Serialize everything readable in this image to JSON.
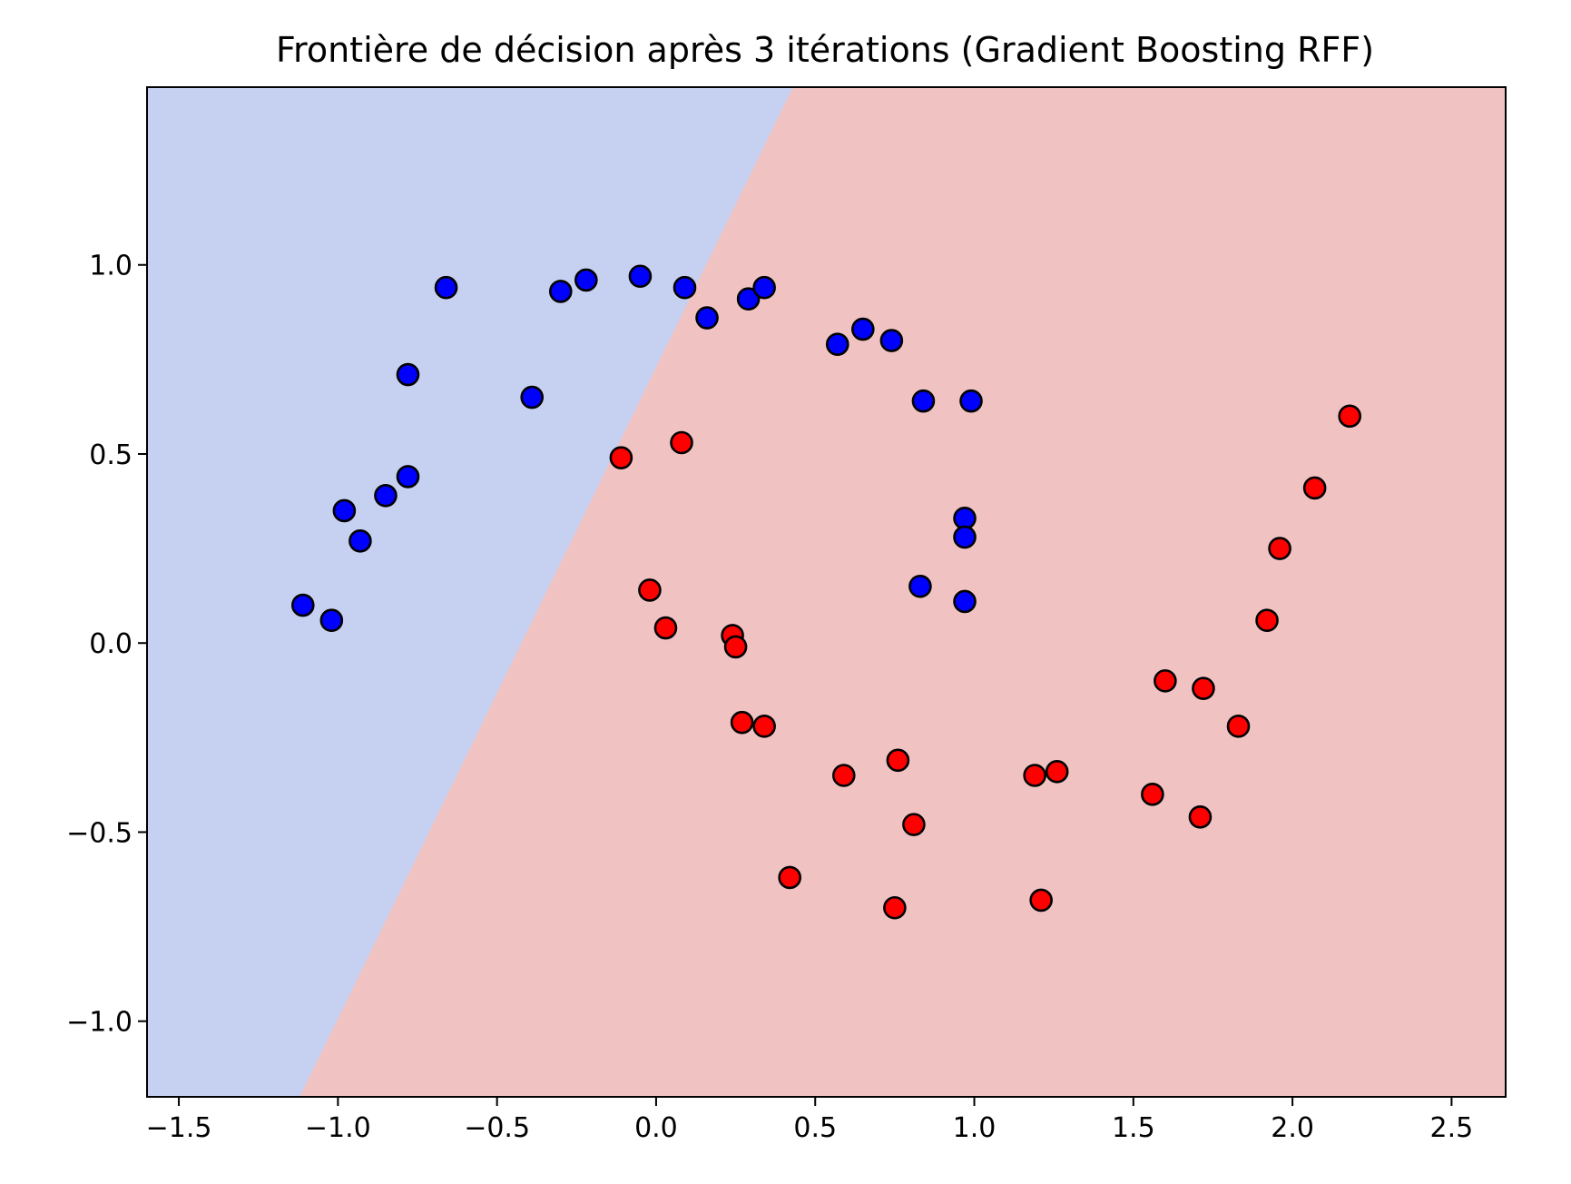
{
  "chart_data": {
    "type": "scatter",
    "title": "Frontière de décision après 3 itérations (Gradient Boosting RFF)",
    "xlabel": "",
    "ylabel": "",
    "xlim": [
      -1.6,
      2.67
    ],
    "ylim": [
      -1.2,
      1.47
    ],
    "xticks": [
      -1.5,
      -1.0,
      -0.5,
      0.0,
      0.5,
      1.0,
      1.5,
      2.0,
      2.5
    ],
    "xtick_labels": [
      "−1.5",
      "−1.0",
      "−0.5",
      "0.0",
      "0.5",
      "1.0",
      "1.5",
      "2.0",
      "2.5"
    ],
    "yticks": [
      -1.0,
      -0.5,
      0.0,
      0.5,
      1.0
    ],
    "ytick_labels": [
      "−1.0",
      "−0.5",
      "0.0",
      "0.5",
      "1.0"
    ],
    "grid": false,
    "decision_boundary": {
      "line": [
        [
          -1.12,
          -1.2
        ],
        [
          0.43,
          1.47
        ]
      ],
      "left_region_color": "#c6d0f1",
      "right_region_color": "#f0c3c2"
    },
    "series": [
      {
        "color": "#0000ff",
        "points": [
          [
            -1.11,
            0.1
          ],
          [
            -1.02,
            0.06
          ],
          [
            -0.98,
            0.35
          ],
          [
            -0.93,
            0.27
          ],
          [
            -0.85,
            0.39
          ],
          [
            -0.78,
            0.44
          ],
          [
            -0.78,
            0.71
          ],
          [
            -0.66,
            0.94
          ],
          [
            -0.39,
            0.65
          ],
          [
            -0.3,
            0.93
          ],
          [
            -0.22,
            0.96
          ],
          [
            -0.05,
            0.97
          ],
          [
            0.09,
            0.94
          ],
          [
            0.16,
            0.86
          ],
          [
            0.29,
            0.91
          ],
          [
            0.34,
            0.94
          ],
          [
            0.57,
            0.79
          ],
          [
            0.65,
            0.83
          ],
          [
            0.74,
            0.8
          ],
          [
            0.84,
            0.64
          ],
          [
            0.99,
            0.64
          ],
          [
            0.97,
            0.33
          ],
          [
            0.97,
            0.28
          ],
          [
            0.83,
            0.15
          ],
          [
            0.97,
            0.11
          ]
        ]
      },
      {
        "color": "#ff0000",
        "points": [
          [
            -0.11,
            0.49
          ],
          [
            0.08,
            0.53
          ],
          [
            -0.02,
            0.14
          ],
          [
            0.03,
            0.04
          ],
          [
            0.24,
            0.02
          ],
          [
            0.25,
            -0.01
          ],
          [
            0.27,
            -0.21
          ],
          [
            0.34,
            -0.22
          ],
          [
            0.42,
            -0.62
          ],
          [
            0.59,
            -0.35
          ],
          [
            0.76,
            -0.31
          ],
          [
            0.81,
            -0.48
          ],
          [
            0.75,
            -0.7
          ],
          [
            1.19,
            -0.35
          ],
          [
            1.26,
            -0.34
          ],
          [
            1.21,
            -0.68
          ],
          [
            1.56,
            -0.4
          ],
          [
            1.6,
            -0.1
          ],
          [
            1.72,
            -0.12
          ],
          [
            1.71,
            -0.46
          ],
          [
            1.83,
            -0.22
          ],
          [
            1.92,
            0.06
          ],
          [
            1.96,
            0.25
          ],
          [
            2.07,
            0.41
          ],
          [
            2.18,
            0.6
          ]
        ]
      }
    ]
  }
}
